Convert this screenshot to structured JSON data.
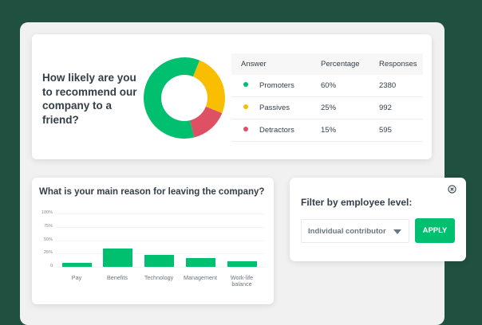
{
  "nps_card": {
    "question": "How likely are you to recommend our company to a friend?",
    "table": {
      "headers": [
        "Answer",
        "Percentage",
        "Responses"
      ],
      "rows": [
        {
          "answer": "Promoters",
          "percentage": "60%",
          "responses": "2380",
          "color": "#00bf6f"
        },
        {
          "answer": "Passives",
          "percentage": "25%",
          "responses": "992",
          "color": "#f9be00"
        },
        {
          "answer": "Detractors",
          "percentage": "15%",
          "responses": "595",
          "color": "#de5063"
        }
      ]
    }
  },
  "bar_card": {
    "title": "What is your main reason for leaving the company?"
  },
  "filter": {
    "title": "Filter by employee level:",
    "selected": "Individual contributor",
    "apply_label": "APPLY"
  },
  "colors": {
    "background": "#205040",
    "accent": "#00bf6f",
    "promoters": "#00bf6f",
    "passives": "#f9be00",
    "detractors": "#de5063"
  },
  "chart_data": [
    {
      "type": "pie",
      "title": "How likely are you to recommend our company to a friend?",
      "categories": [
        "Promoters",
        "Passives",
        "Detractors"
      ],
      "values": [
        60,
        25,
        15
      ],
      "responses": [
        2380,
        992,
        595
      ],
      "colors": [
        "#00bf6f",
        "#f9be00",
        "#de5063"
      ],
      "donut": true
    },
    {
      "type": "bar",
      "title": "What is your main reason for leaving the company?",
      "categories": [
        "Pay",
        "Benefits",
        "Technology",
        "Management",
        "Work-life balance"
      ],
      "values": [
        8,
        34,
        22,
        17,
        10
      ],
      "yticks": [
        "100%",
        "75%",
        "50%",
        "25%",
        "0"
      ],
      "ylim": [
        0,
        100
      ],
      "grid": true,
      "xlabel": "",
      "ylabel": ""
    }
  ]
}
